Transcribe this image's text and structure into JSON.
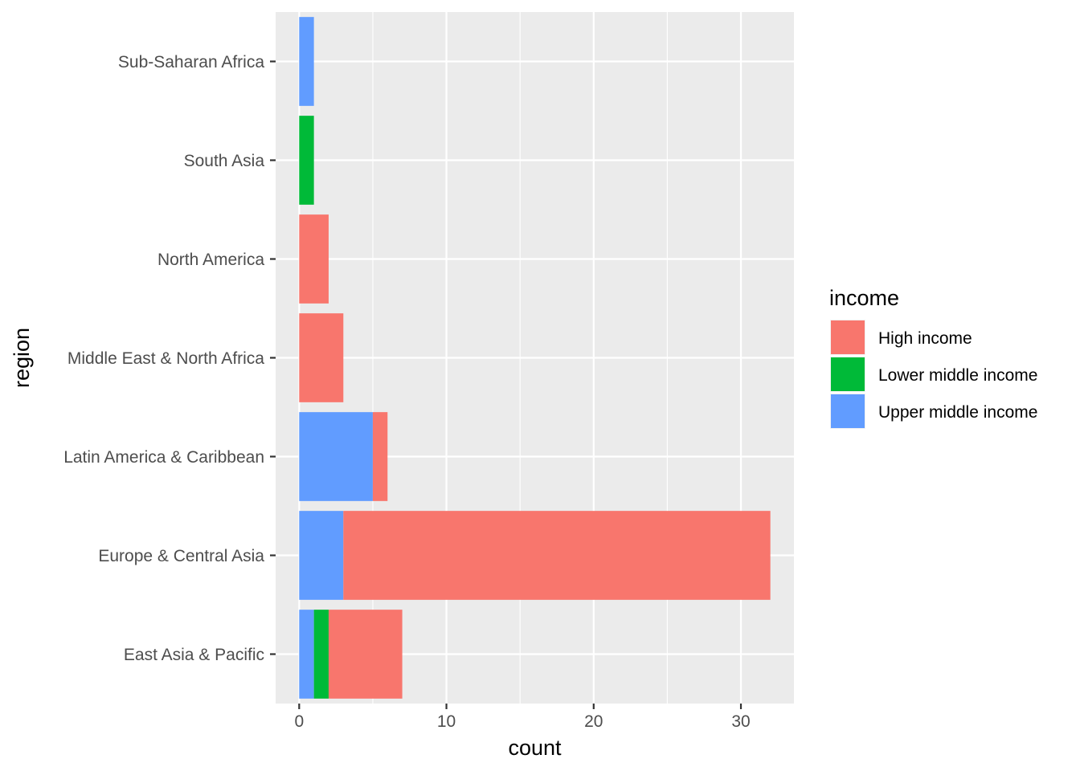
{
  "chart_data": {
    "type": "bar",
    "orientation": "horizontal",
    "stacked": true,
    "xlabel": "count",
    "ylabel": "region",
    "xlim": [
      -1.6,
      33.6
    ],
    "x_ticks": [
      0,
      10,
      20,
      30
    ],
    "grid": true,
    "legend_position": "right",
    "legend_title": "income",
    "categories": [
      "East Asia & Pacific",
      "Europe & Central Asia",
      "Latin America & Caribbean",
      "Middle East & North Africa",
      "North America",
      "South Asia",
      "Sub-Saharan Africa"
    ],
    "stack_order": [
      "Upper middle income",
      "Lower middle income",
      "High income"
    ],
    "series": [
      {
        "name": "High income",
        "color": "#F8766D",
        "values": [
          5,
          29,
          1,
          3,
          2,
          0,
          0
        ]
      },
      {
        "name": "Lower middle income",
        "color": "#00BA38",
        "values": [
          1,
          0,
          0,
          0,
          0,
          1,
          0
        ]
      },
      {
        "name": "Upper middle income",
        "color": "#619CFF",
        "values": [
          1,
          3,
          5,
          0,
          0,
          0,
          1
        ]
      }
    ]
  }
}
